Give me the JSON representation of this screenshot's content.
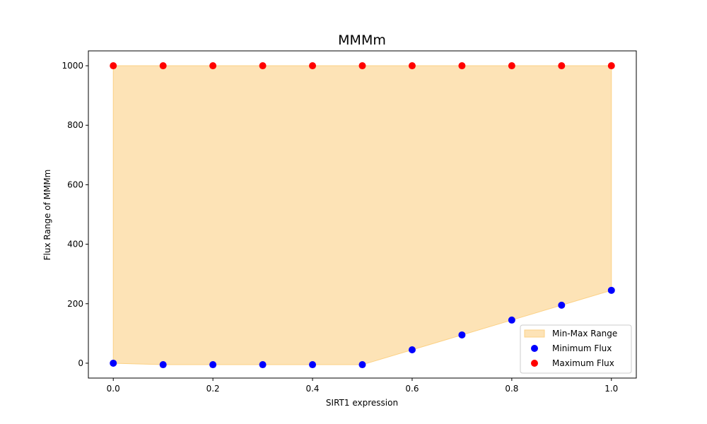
{
  "chart_data": {
    "type": "scatter",
    "title": "MMMm",
    "xlabel": "SIRT1 expression",
    "ylabel": "Flux Range of MMMm",
    "xlim": [
      -0.05,
      1.05
    ],
    "ylim": [
      -50,
      1050
    ],
    "x_ticks": [
      0.0,
      0.2,
      0.4,
      0.6,
      0.8,
      1.0
    ],
    "x_tick_labels": [
      "0.0",
      "0.2",
      "0.4",
      "0.6",
      "0.8",
      "1.0"
    ],
    "y_ticks": [
      0,
      200,
      400,
      600,
      800,
      1000
    ],
    "y_tick_labels": [
      "0",
      "200",
      "400",
      "600",
      "800",
      "1000"
    ],
    "x": [
      0.0,
      0.1,
      0.2,
      0.3,
      0.4,
      0.5,
      0.6,
      0.7,
      0.8,
      0.9,
      1.0
    ],
    "series": [
      {
        "name": "Minimum Flux",
        "kind": "scatter",
        "color": "#0000ff",
        "values": [
          0,
          -5,
          -5,
          -5,
          -5,
          -5,
          45,
          95,
          145,
          195,
          245
        ]
      },
      {
        "name": "Maximum Flux",
        "kind": "scatter",
        "color": "#ff0000",
        "values": [
          1000,
          1000,
          1000,
          1000,
          1000,
          1000,
          1000,
          1000,
          1000,
          1000,
          1000
        ]
      }
    ],
    "fill_between": {
      "name": "Min-Max Range",
      "color": "#fcd185",
      "opacity": 0.6
    },
    "legend": {
      "placement": "lower-right",
      "entries": [
        "Min-Max Range",
        "Minimum Flux",
        "Maximum Flux"
      ]
    },
    "grid": false
  }
}
